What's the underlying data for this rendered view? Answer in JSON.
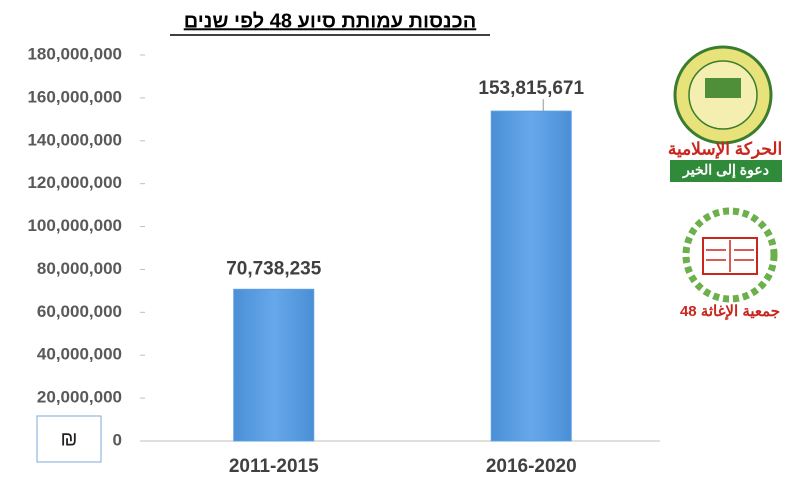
{
  "chart_data": {
    "type": "bar",
    "title": "הכנסות עמותת סיוע 48 לפי שנים",
    "categories": [
      "2011-2015",
      "2016-2020"
    ],
    "values": [
      70738235,
      153815671
    ],
    "value_labels": [
      "70,738,235",
      "153,815,671"
    ],
    "color": "#5b9fe0",
    "ylim": [
      0,
      180000000
    ],
    "yticks": [
      0,
      {
        "value": 20000000,
        "label": "20,000,000"
      },
      {
        "value": 40000000,
        "label": "40,000,000"
      },
      {
        "value": 60000000,
        "label": "60,000,000"
      },
      {
        "value": 80000000,
        "label": "80,000,000"
      },
      {
        "value": 100000000,
        "label": "100,000,000"
      },
      {
        "value": 120000000,
        "label": "120,000,000"
      },
      {
        "value": 140000000,
        "label": "140,000,000"
      },
      {
        "value": 160000000,
        "label": "160,000,000"
      },
      {
        "value": 180000000,
        "label": "180,000,000"
      }
    ],
    "grid": false,
    "currency_symbol": "₪"
  },
  "logos": {
    "movement_name": "الحركة الإسلامية",
    "movement_slogan": "دعوة إلى الخير",
    "relief_name": "جمعية الإغاثة 48"
  }
}
